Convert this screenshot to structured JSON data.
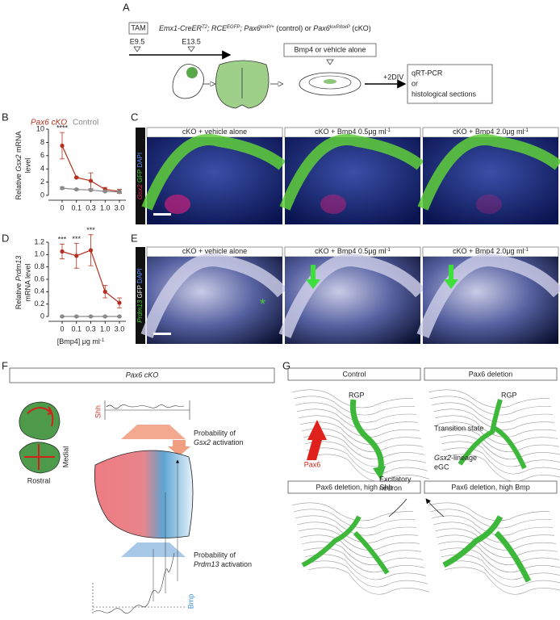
{
  "panel_a": {
    "label": "A",
    "tam": "TAM",
    "e1": "E9.5",
    "e2": "E13.5",
    "genotype": [
      "Emx1-CreER",
      "T2",
      "; RCE",
      "EGFP",
      "; Pax6",
      "loxP/+",
      " (control) or ",
      "Pax6",
      "loxP/loxP",
      " (cKO)"
    ],
    "treatment": "Bmp4 or vehicle alone",
    "div": "+2DIV",
    "readout": [
      "qRT-PCR",
      "or",
      "histological sections"
    ]
  },
  "panel_b": {
    "label": "B",
    "type": "line",
    "ylabel": [
      "Relative ",
      "Gsx2",
      " mRNA",
      "level"
    ],
    "categories": [
      "0",
      "0.1",
      "0.3",
      "1.0",
      "3.0"
    ],
    "series": [
      {
        "name": "Pax6 cKO",
        "color": "#b5301f",
        "values": [
          7.5,
          2.7,
          2.2,
          0.9,
          0.6
        ],
        "errors": [
          2.0,
          0.1,
          1.2,
          0.3,
          0.3
        ]
      },
      {
        "name": "Control",
        "color": "#8a8a8a",
        "values": [
          1.1,
          0.9,
          0.8,
          0.6,
          0.5
        ],
        "errors": [
          0.2,
          0.1,
          0.1,
          0.1,
          0.1
        ]
      }
    ],
    "ylim": [
      0,
      10
    ],
    "yticks": [
      0,
      2,
      4,
      6,
      8,
      10
    ],
    "annotations": [
      {
        "text": "****",
        "x": "0"
      }
    ]
  },
  "panel_c": {
    "label": "C",
    "side": [
      "Gsx2",
      " GFP ",
      "DAPI"
    ],
    "titles": [
      [
        "cKO + vehicle alone"
      ],
      [
        "cKO + Bmp4 0.5μg ml",
        "-1"
      ],
      [
        "cKO + Bmp4 2.0μg ml",
        "-1"
      ]
    ]
  },
  "panel_d": {
    "label": "D",
    "type": "line",
    "ylabel": [
      "Relative ",
      "Prdm13",
      "mRNA level"
    ],
    "xlabel": [
      "[Bmp4] μg ml",
      "-1"
    ],
    "categories": [
      "0",
      "0.1",
      "0.3",
      "1.0",
      "3.0"
    ],
    "series": [
      {
        "color": "#b5301f",
        "values": [
          1.05,
          0.98,
          1.07,
          0.4,
          0.22
        ],
        "errors": [
          0.12,
          0.2,
          0.25,
          0.1,
          0.08
        ]
      },
      {
        "color": "#8a8a8a",
        "values": [
          0,
          0,
          0,
          0,
          0
        ],
        "errors": [
          0.01,
          0.01,
          0.01,
          0.01,
          0.01
        ]
      }
    ],
    "ylim": [
      0,
      1.2
    ],
    "yticks": [
      0,
      0.2,
      0.4,
      0.6,
      0.8,
      {
        "value": 1,
        "label": "1.0"
      },
      1.2
    ],
    "annotations": [
      {
        "text": "***",
        "x": "0"
      },
      {
        "text": "***",
        "x": "0.1"
      },
      {
        "text": "***",
        "x": "0.3"
      }
    ]
  },
  "panel_e": {
    "label": "E",
    "side": [
      "Prdm13",
      " GFP ",
      "DAPI"
    ],
    "titles": [
      [
        "cKO + vehicle alone"
      ],
      [
        "cKO + Bmp4 0.5μg ml",
        "-1"
      ],
      [
        "cKO + Bmp4 2.0μg ml",
        "-1"
      ]
    ]
  },
  "panel_f": {
    "label": "F",
    "title": "Pax6 cKO",
    "shh": "Shh",
    "bmp": "Bmp",
    "medial": "Medial",
    "rostral": "Rostral",
    "gsx2": [
      "Probability of",
      "Gsx2",
      " activation"
    ],
    "prdm13": [
      "Probability of",
      "Prdm13",
      " activation"
    ]
  },
  "panel_g": {
    "label": "G",
    "titles": [
      "Control",
      "Pax6 deletion",
      "Pax6 deletion, high Shh",
      "Pax6 deletion, high Bmp"
    ],
    "rgp1": "RGP",
    "rgp2": "RGP",
    "pax6": "Pax6",
    "neuron": [
      "Excitatory",
      "neuron"
    ],
    "transition": "Transition state",
    "egc": [
      "Gsx2",
      "-lineage",
      "eGC"
    ]
  }
}
